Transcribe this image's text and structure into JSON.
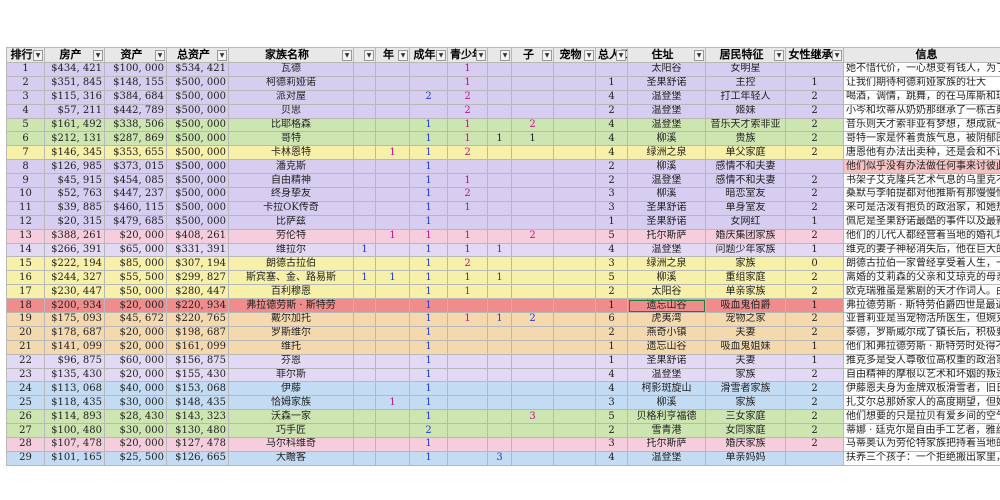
{
  "colors": {
    "violet": "#d6cdf0",
    "yellow": "#f6f0a8",
    "green": "#cde6b1",
    "blue": "#c3dcf4",
    "orange": "#f5d9ae",
    "red": "#f08c8c",
    "lavender": "#e2d9f5",
    "pink": "#f6cddd",
    "white": "#ffffff"
  },
  "headers": [
    "排行",
    "房产",
    "资产",
    "总资产",
    "家族名称",
    "",
    "年",
    "成年",
    "青少年",
    "",
    "子",
    "宠物",
    "总人口",
    "住址",
    "居民特征",
    "女性继承",
    "信息"
  ],
  "rows": [
    {
      "c": [
        "1",
        "$434, 421",
        "$100, 000",
        "$534, 421",
        "瓦德",
        "",
        "",
        "",
        "1",
        "",
        "",
        "",
        "",
        "太阳谷",
        "女明星",
        "",
        "她不惜代价，一心想变有钱人，为了在阳"
      ],
      "mag": [
        8
      ],
      "blu": [],
      "bg": "violet"
    },
    {
      "c": [
        "2",
        "$351, 845",
        "$148, 155",
        "$500, 000",
        "柯德莉娅诺",
        "",
        "",
        "",
        "1",
        "",
        "",
        "",
        "1",
        "圣果舒诺",
        "主控",
        "1",
        "让我们期待柯德莉娅家族的壮大"
      ],
      "mag": [
        8
      ],
      "blu": [],
      "bg": "violet"
    },
    {
      "c": [
        "3",
        "$115, 316",
        "$384, 684",
        "$500, 000",
        "派对屋",
        "",
        "",
        "2",
        "2",
        "",
        "",
        "",
        "4",
        "温登堡",
        "打工年轻人",
        "2",
        "喝酒，调情，跳舞，的在马库斯和理玉，"
      ],
      "mag": [
        8
      ],
      "blu": [
        7
      ],
      "bg": "violet"
    },
    {
      "c": [
        "4",
        "$57, 211",
        "$442, 789",
        "$500, 000",
        "贝思",
        "",
        "",
        "",
        "2",
        "",
        "",
        "",
        "2",
        "温登堡",
        "姬妹",
        "2",
        "小岑和坎蒂从奶奶那继承了一栋古典独墅"
      ],
      "mag": [
        8
      ],
      "blu": [],
      "bg": "violet"
    },
    {
      "c": [
        "5",
        "$161, 492",
        "$338, 506",
        "$500, 000",
        "比耶格森",
        "",
        "",
        "1",
        "1",
        "",
        "2",
        "",
        "4",
        "温登堡",
        "音乐天才索非亚",
        "2",
        "音乐则天才索非亚有梦想，想成就一番非"
      ],
      "mag": [
        8,
        10
      ],
      "blu": [
        7
      ],
      "bg": "green"
    },
    {
      "c": [
        "6",
        "$212, 131",
        "$287, 869",
        "$500, 000",
        "哥特",
        "",
        "",
        "1",
        "1",
        "1",
        "1",
        "",
        "4",
        "柳溪",
        "贵族",
        "2",
        "哥特一家是怀着贵族气息，被阴郁围绕的"
      ],
      "mag": [
        8
      ],
      "blu": [
        7
      ],
      "bg": "green"
    },
    {
      "c": [
        "7",
        "$146, 345",
        "$353, 655",
        "$500, 000",
        "卡林恩特",
        "",
        "1",
        "1",
        "2",
        "",
        "",
        "",
        "4",
        "绿洲之泉",
        "单父家庭",
        "2",
        "唐恩他有办法出卖种，还是会和不让一"
      ],
      "mag": [
        6,
        8
      ],
      "blu": [
        7
      ],
      "bg": "yellow"
    },
    {
      "c": [
        "8",
        "$126, 985",
        "$373, 015",
        "$500, 000",
        "潘克斯",
        "",
        "",
        "1",
        "",
        "",
        "",
        "",
        "2",
        "柳溪",
        "感情不和夫妻",
        "",
        "他们似乎没有办法做任何事来讨彼此欢心"
      ],
      "mag": [],
      "blu": [
        7
      ],
      "bg": "violet",
      "infoRed": true
    },
    {
      "c": [
        "9",
        "$45, 915",
        "$454, 085",
        "$500, 000",
        "自由精神",
        "",
        "",
        "1",
        "1",
        "",
        "",
        "",
        "2",
        "温登堡",
        "感情不和夫妻",
        "2",
        "书架子艾克隆兵艺术气息的乌里克不太注"
      ],
      "mag": [
        8
      ],
      "blu": [
        7
      ],
      "bg": "violet"
    },
    {
      "c": [
        "10",
        "$52, 763",
        "$447, 237",
        "$500, 000",
        "终身挚友",
        "",
        "",
        "1",
        "2",
        "",
        "",
        "",
        "3",
        "柳溪",
        "暗恋室友",
        "2",
        "桑默与李帕提都对他推斯有那慢慢愉长"
      ],
      "mag": [
        8
      ],
      "blu": [
        7
      ],
      "bg": "violet"
    },
    {
      "c": [
        "11",
        "$39, 885",
        "$460, 115",
        "$500, 000",
        "卡拉OK传奇",
        "",
        "",
        "1",
        "1",
        "",
        "",
        "",
        "3",
        "圣果舒诺",
        "单身室友",
        "2",
        "来可是活泼有抱负的政治家，和她热爱"
      ],
      "mag": [
        8
      ],
      "blu": [
        7
      ],
      "bg": "violet"
    },
    {
      "c": [
        "12",
        "$20, 315",
        "$479, 685",
        "$500, 000",
        "比萨兹",
        "",
        "",
        "1",
        "",
        "",
        "",
        "",
        "1",
        "圣果舒诺",
        "女网红",
        "1",
        "佩尼是圣果舒诺最酷的事件以及最新潮"
      ],
      "mag": [],
      "blu": [
        7
      ],
      "bg": "violet"
    },
    {
      "c": [
        "13",
        "$388, 261",
        "$20, 000",
        "$408, 261",
        "劳伦特",
        "",
        "1",
        "1",
        "1",
        "",
        "2",
        "",
        "5",
        "托尔斯萨",
        "婚庆集团家族",
        "2",
        "他们的儿代人都经营着当地的婚礼场所"
      ],
      "mag": [
        6,
        7,
        8,
        10
      ],
      "blu": [],
      "bg": "pink"
    },
    {
      "c": [
        "14",
        "$266, 391",
        "$65, 000",
        "$331, 391",
        "维拉尔",
        "1",
        "",
        "1",
        "1",
        "1",
        "",
        "",
        "4",
        "温登堡",
        "问题少年家族",
        "1",
        "维克的妻子神秘消失后，他在巨大的宅"
      ],
      "mag": [],
      "blu": [
        5,
        7,
        8,
        9
      ],
      "bg": "lavender"
    },
    {
      "c": [
        "15",
        "$222, 194",
        "$85, 000",
        "$307, 194",
        "朗德古拉伯",
        "",
        "",
        "1",
        "2",
        "",
        "",
        "",
        "3",
        "绿洲之泉",
        "家族",
        "0",
        "朗德古拉伯一家曾经享受着人生，一向"
      ],
      "mag": [
        8
      ],
      "blu": [
        7
      ],
      "bg": "yellow"
    },
    {
      "c": [
        "16",
        "$244, 327",
        "$55, 500",
        "$299, 827",
        "斯宾塞、金、路易斯",
        "1",
        "1",
        "1",
        "1",
        "1",
        "",
        "",
        "5",
        "柳溪",
        "重组家庭",
        "2",
        "离婚的艾莉森的父亲和艾琼克的母亲一起"
      ],
      "mag": [],
      "blu": [
        5,
        6,
        7,
        8,
        9
      ],
      "bg": "yellow"
    },
    {
      "c": [
        "17",
        "$230, 447",
        "$50, 000",
        "$280, 447",
        "百利穆恩",
        "",
        "",
        "1",
        "1",
        "",
        "",
        "",
        "2",
        "太阳谷",
        "单亲家族",
        "2",
        "欧克瑞雅虽是紫剧的天才作词人。由于"
      ],
      "mag": [
        8
      ],
      "blu": [
        7
      ],
      "bg": "yellow"
    },
    {
      "c": [
        "18",
        "$200, 934",
        "$20, 000",
        "$220, 934",
        "弗拉德劳斯 · 斯特劳",
        "",
        "",
        "1",
        "",
        "",
        "",
        "",
        "1",
        "遗忘山谷",
        "吸血鬼伯爵",
        "1",
        "弗拉德劳斯 · 斯特劳伯爵四世是最近一位"
      ],
      "mag": [],
      "blu": [
        7
      ],
      "bg": "red",
      "sel": 13
    },
    {
      "c": [
        "19",
        "$175, 093",
        "$45, 672",
        "$220, 765",
        "戴尔加托",
        "",
        "",
        "1",
        "1",
        "1",
        "2",
        "",
        "6",
        "虎夷湾",
        "宠物之家",
        "2",
        "亚普莉亚是当宠物活所医生，但婉克的"
      ],
      "mag": [
        8
      ],
      "blu": [
        7,
        9,
        10
      ],
      "bg": "orange"
    },
    {
      "c": [
        "20",
        "$178, 687",
        "$20, 000",
        "$198, 687",
        "罗斯维尔",
        "",
        "",
        "1",
        "",
        "",
        "",
        "",
        "2",
        "燕奇小镇",
        "夫妻",
        "2",
        "泰德，罗斯威尔成了镇长后，积极要推"
      ],
      "mag": [],
      "blu": [
        7
      ],
      "bg": "orange"
    },
    {
      "c": [
        "21",
        "$141, 099",
        "$20, 000",
        "$161, 099",
        "维托",
        "",
        "",
        "1",
        "",
        "",
        "",
        "",
        "1",
        "遗忘山谷",
        "吸血鬼姐妹",
        "1",
        "他们和弗拉德劳斯 · 斯特劳时处得不尽相"
      ],
      "mag": [],
      "blu": [
        7
      ],
      "bg": "orange"
    },
    {
      "c": [
        "22",
        "$96, 875",
        "$60, 000",
        "$156, 875",
        "芬恩",
        "",
        "",
        "1",
        "",
        "",
        "",
        "",
        "1",
        "圣果舒诺",
        "夫妻",
        "1",
        "推克多是受人尊敬位高权重的政治家，新"
      ],
      "mag": [],
      "blu": [
        7
      ],
      "bg": "lavender"
    },
    {
      "c": [
        "23",
        "$135, 430",
        "$20, 000",
        "$155, 430",
        "菲尔斯",
        "",
        "",
        "1",
        "",
        "",
        "",
        "",
        "4",
        "温登堡",
        "家族",
        "2",
        "自由精神的摩根以艺术和坏姻的叛逆斗"
      ],
      "mag": [],
      "blu": [
        7
      ],
      "bg": "lavender"
    },
    {
      "c": [
        "24",
        "$113, 068",
        "$40, 000",
        "$153, 068",
        "伊藤",
        "",
        "",
        "1",
        "",
        "",
        "",
        "",
        "4",
        "柯影斑旋山",
        "滑雪者家族",
        "2",
        "伊藤恩夫身为金牌双板滑雪者，旧日的情"
      ],
      "mag": [],
      "blu": [
        7
      ],
      "bg": "blue"
    },
    {
      "c": [
        "25",
        "$118, 435",
        "$30, 000",
        "$148, 435",
        "恰姆家族",
        "",
        "1",
        "1",
        "",
        "",
        "",
        "",
        "3",
        "柳溪",
        "家族",
        "2",
        "扎艾尔总那娇家人的高度期望，但她发现"
      ],
      "mag": [
        6
      ],
      "blu": [
        7
      ],
      "bg": "blue"
    },
    {
      "c": [
        "26",
        "$114, 893",
        "$28, 430",
        "$143, 323",
        "沃森一家",
        "",
        "",
        "1",
        "",
        "",
        "3",
        "",
        "5",
        "贝格利亨福德",
        "三女家庭",
        "2",
        "他们想要的只是拉贝有爱乡间的空气，但"
      ],
      "mag": [
        10
      ],
      "blu": [
        7
      ],
      "bg": "green"
    },
    {
      "c": [
        "27",
        "$100, 480",
        "$30, 000",
        "$130, 480",
        "巧手匠",
        "",
        "",
        "2",
        "",
        "",
        "",
        "",
        "2",
        "雪青港",
        "女同家庭",
        "2",
        "蒂娜 · 廷克尔是自由手工艺者，雅丝敏说"
      ],
      "mag": [],
      "blu": [
        7
      ],
      "bg": "green"
    },
    {
      "c": [
        "28",
        "$107, 478",
        "$20, 000",
        "$127, 478",
        "马尔科维奇",
        "",
        "",
        "1",
        "",
        "",
        "",
        "",
        "3",
        "托尔斯萨",
        "婚庆家族",
        "2",
        "马蒂奥认为劳伦特家族把持着当地的婚礼"
      ],
      "mag": [],
      "blu": [
        7
      ],
      "bg": "pink"
    },
    {
      "c": [
        "29",
        "$101, 165",
        "$25, 500",
        "$126, 665",
        "大瞻客",
        "",
        "",
        "1",
        "",
        "3",
        "",
        "",
        "4",
        "温登堡",
        "单亲妈妈",
        "",
        "扶养三个孩子：一个拒绝搬出家里，另一"
      ],
      "mag": [],
      "blu": [
        7,
        9
      ],
      "bg": "blue"
    }
  ]
}
